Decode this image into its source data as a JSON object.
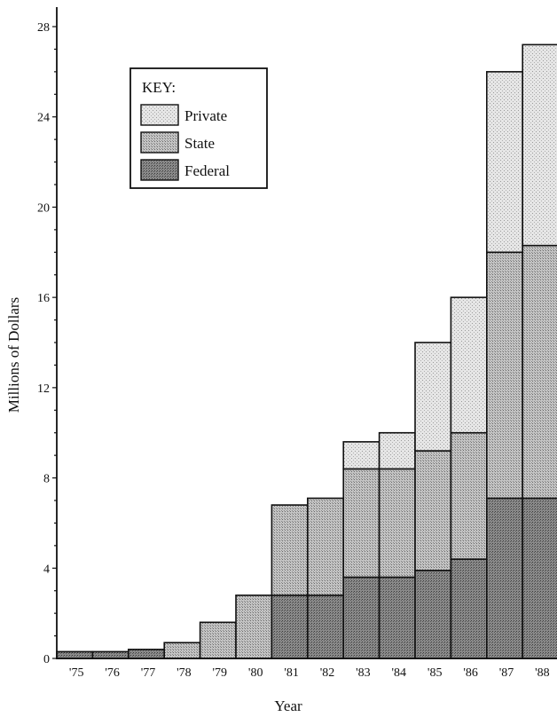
{
  "chart_data": {
    "type": "bar",
    "stacked": true,
    "title": "",
    "xlabel": "Year",
    "ylabel": "Millions of Dollars",
    "categories": [
      "'75",
      "'76",
      "'77",
      "'78",
      "'79",
      "'80",
      "'81",
      "'82",
      "'83",
      "'84",
      "'85",
      "'86",
      "'87",
      "'88"
    ],
    "ylim": [
      0,
      28
    ],
    "yticks": [
      "0",
      "4",
      "8",
      "12",
      "16",
      "20",
      "24",
      "28"
    ],
    "ytick_values": [
      0,
      4,
      8,
      12,
      16,
      20,
      24,
      28
    ],
    "grid": false,
    "legend": {
      "title": "KEY:",
      "placement": "top-left"
    },
    "series": [
      {
        "name": "Federal",
        "color": "#7a7a7a",
        "values": [
          0.3,
          0.3,
          0.4,
          0.0,
          0.0,
          0.0,
          2.8,
          2.8,
          3.6,
          3.6,
          3.9,
          4.4,
          7.1,
          7.1
        ]
      },
      {
        "name": "State",
        "color": "#b2b2b2",
        "values": [
          0.0,
          0.0,
          0.0,
          0.7,
          1.6,
          2.8,
          4.0,
          4.3,
          4.8,
          4.8,
          5.3,
          5.6,
          10.9,
          11.2
        ]
      },
      {
        "name": "Private",
        "color": "#dedede",
        "values": [
          0.0,
          0.0,
          0.0,
          0.0,
          0.0,
          0.0,
          0.0,
          0.0,
          1.2,
          1.6,
          4.8,
          6.0,
          8.0,
          8.9
        ]
      }
    ],
    "legend_order": [
      "Private",
      "State",
      "Federal"
    ]
  }
}
